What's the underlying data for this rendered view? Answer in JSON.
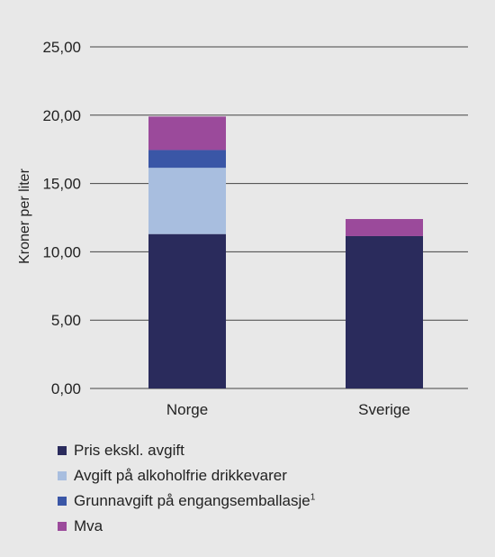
{
  "chart_data": {
    "type": "bar",
    "stacked": true,
    "categories": [
      "Norge",
      "Sverige"
    ],
    "series": [
      {
        "name": "Pris ekskl. avgift",
        "color": "#2a2b5c",
        "values": [
          11.3,
          11.15
        ]
      },
      {
        "name": "Avgift på alkoholfrie drikkevarer",
        "color": "#a8bedf",
        "values": [
          4.85,
          0
        ]
      },
      {
        "name": "Grunnavgift på engangsemballasje",
        "name_sup": "1",
        "color": "#3a56a6",
        "values": [
          1.3,
          0
        ]
      },
      {
        "name": "Mva",
        "color": "#9b4a9b",
        "values": [
          2.45,
          1.25
        ]
      }
    ],
    "ylabel": "Kroner per liter",
    "ylim": [
      0,
      25
    ],
    "yticks": [
      "0,00",
      "5,00",
      "10,00",
      "15,00",
      "20,00",
      "25,00"
    ],
    "ytick_values": [
      0,
      5,
      10,
      15,
      20,
      25
    ],
    "grid": true,
    "legend": "bottom-left"
  }
}
